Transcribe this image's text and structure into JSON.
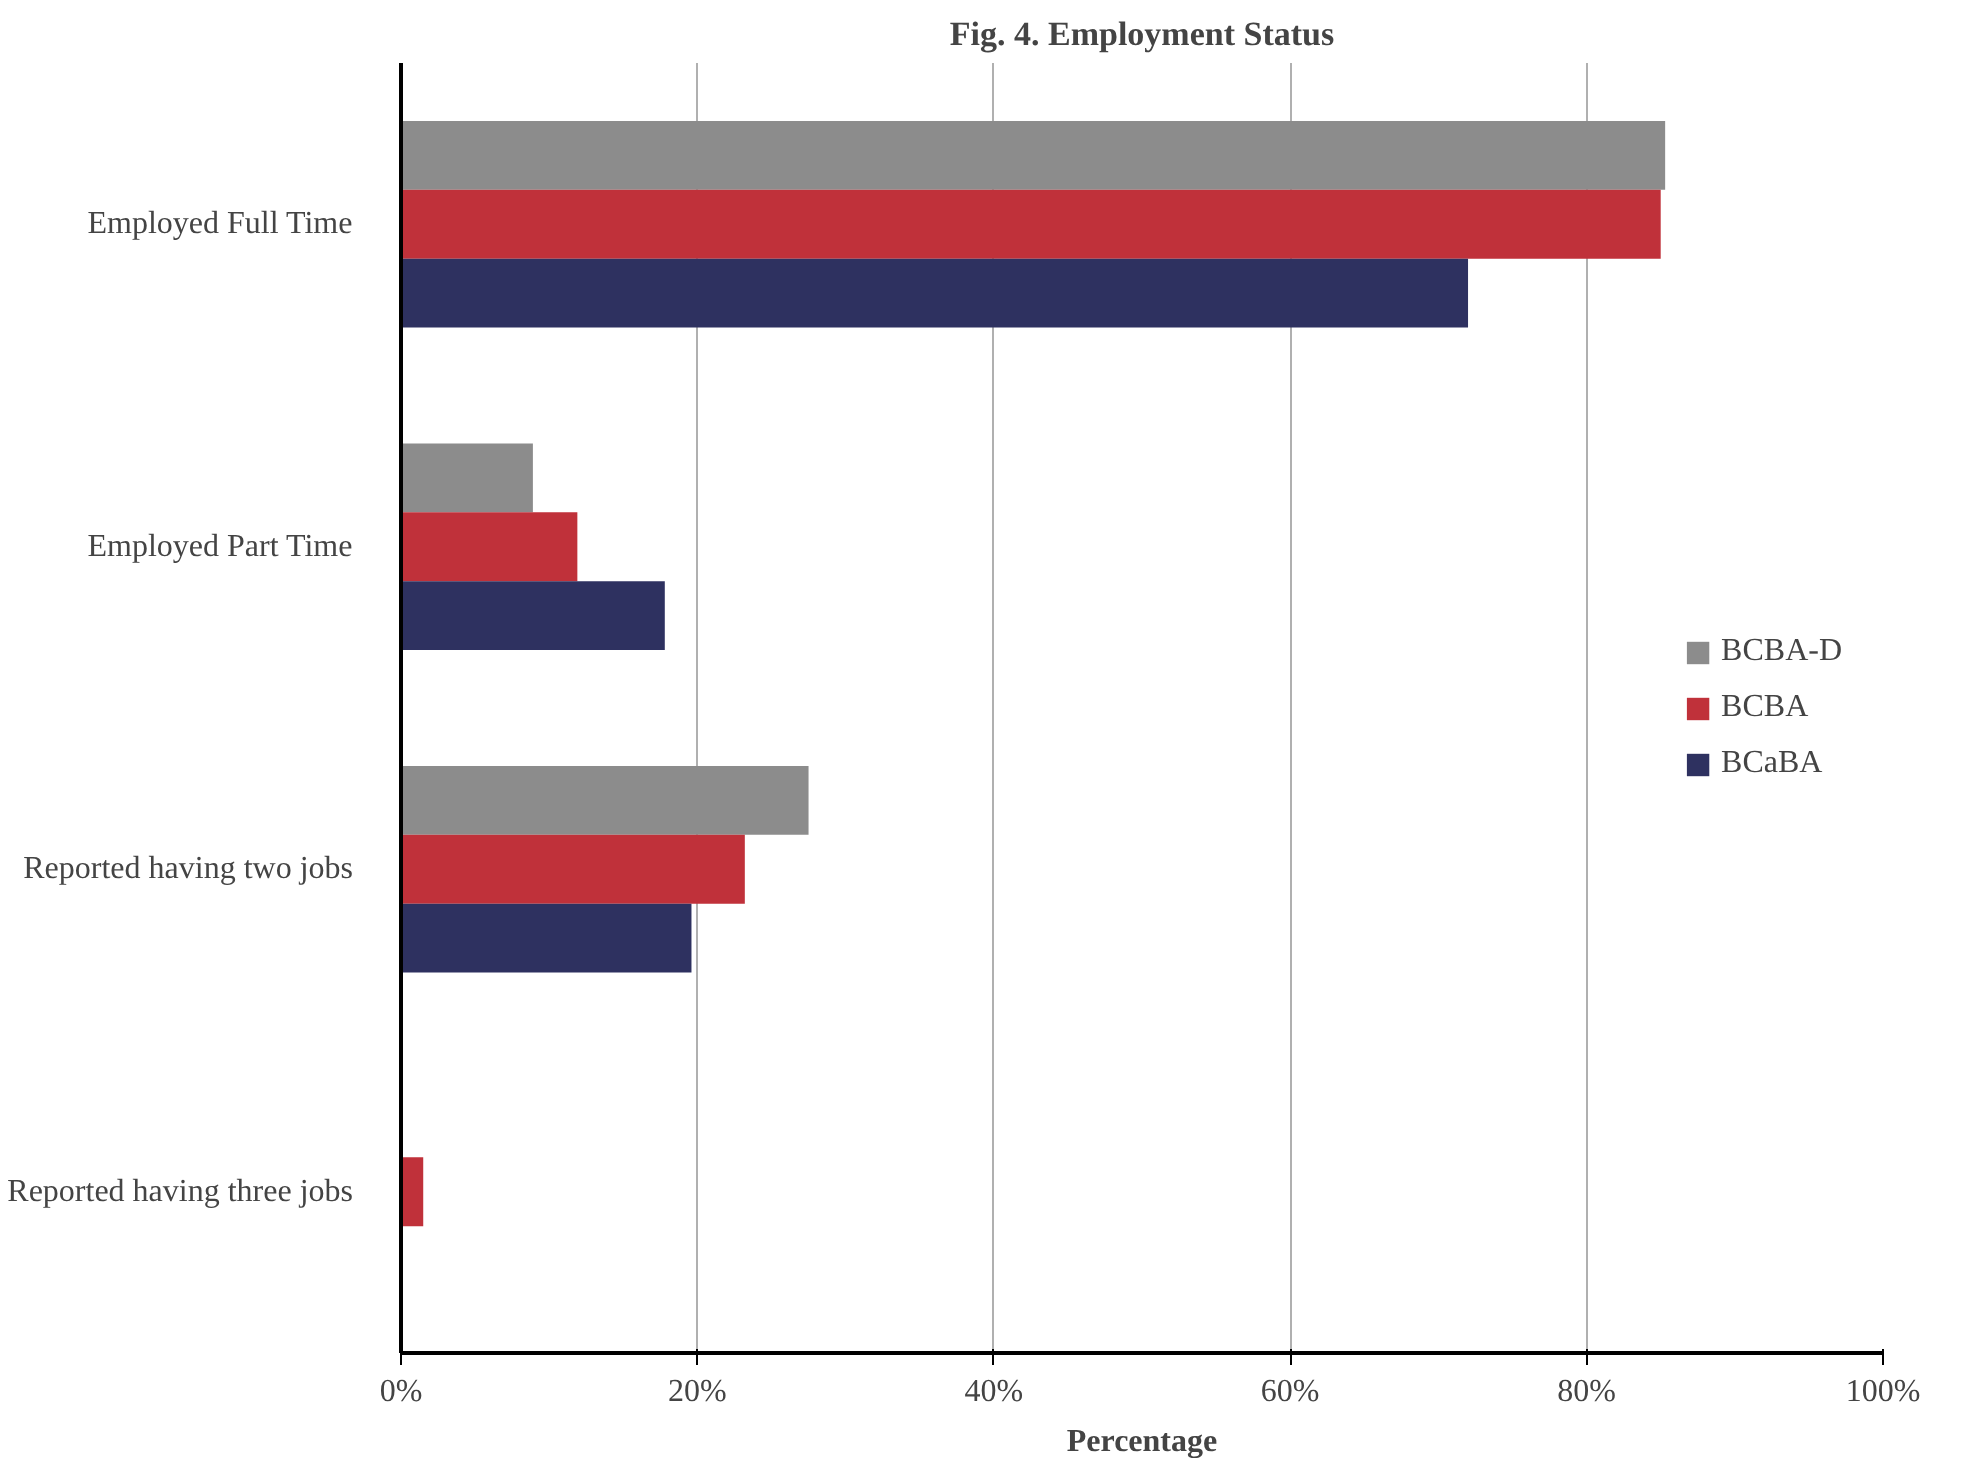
{
  "chart_data": {
    "type": "bar",
    "orientation": "horizontal",
    "title": "Fig. 4. Employment Status",
    "xlabel": "Percentage",
    "categories": [
      "Employed Full Time",
      "Employed Part Time",
      "Reported having two jobs",
      "Reported having three jobs"
    ],
    "series": [
      {
        "name": "BCBA-D",
        "color": "#8c8c8c",
        "values": [
          85.3,
          8.9,
          27.5,
          0
        ]
      },
      {
        "name": "BCBA",
        "color": "#c0313a",
        "values": [
          85.0,
          11.9,
          23.2,
          1.5
        ]
      },
      {
        "name": "BCaBA",
        "color": "#2e3160",
        "values": [
          72.0,
          17.8,
          19.6,
          0
        ]
      }
    ],
    "xlim": [
      0,
      100
    ],
    "xticks": [
      {
        "value": 0,
        "label": "0%"
      },
      {
        "value": 20,
        "label": "20%"
      },
      {
        "value": 40,
        "label": "40%"
      },
      {
        "value": 60,
        "label": "60%"
      },
      {
        "value": 80,
        "label": "80%"
      },
      {
        "value": 100,
        "label": "100%"
      }
    ],
    "grid": "x",
    "legend": "right"
  }
}
